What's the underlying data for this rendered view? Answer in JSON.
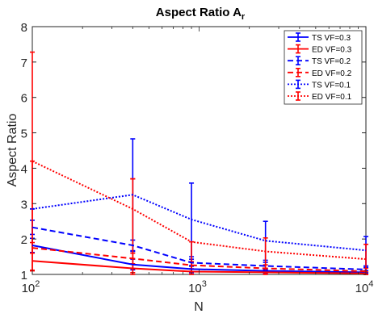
{
  "chart_data": {
    "type": "line",
    "title_main": "Aspect Ratio A",
    "title_sub": "r",
    "xlabel": "N",
    "ylabel": "Aspect Ratio",
    "x_scale": "log",
    "xlim": [
      100,
      10000
    ],
    "ylim": [
      1,
      8
    ],
    "x_ticks": [
      {
        "value": 100,
        "base": "10",
        "exp": "2"
      },
      {
        "value": 1000,
        "base": "10",
        "exp": "3"
      },
      {
        "value": 10000,
        "base": "10",
        "exp": "4"
      }
    ],
    "y_ticks": [
      {
        "value": 1,
        "label": "1"
      },
      {
        "value": 2,
        "label": "2"
      },
      {
        "value": 3,
        "label": "3"
      },
      {
        "value": 4,
        "label": "4"
      },
      {
        "value": 5,
        "label": "5"
      },
      {
        "value": 6,
        "label": "6"
      },
      {
        "value": 7,
        "label": "7"
      },
      {
        "value": 8,
        "label": "8"
      }
    ],
    "grid": false,
    "legend_position": "top-right",
    "x": [
      100,
      400,
      900,
      2500,
      10000
    ],
    "series": [
      {
        "name": "TS VF=0.3",
        "color": "#0000ff",
        "dash": "solid",
        "values": [
          1.82,
          1.28,
          1.15,
          1.1,
          1.06
        ],
        "err_low": [
          1.62,
          1.13,
          1.05,
          1.03,
          1.01
        ],
        "err_high": [
          2.02,
          1.43,
          1.25,
          1.17,
          1.11
        ]
      },
      {
        "name": "ED VF=0.3",
        "color": "#ff0000",
        "dash": "solid",
        "values": [
          1.38,
          1.17,
          1.08,
          1.06,
          1.03
        ],
        "err_low": [
          1.12,
          1.05,
          1.01,
          1.01,
          1.0
        ],
        "err_high": [
          7.28,
          3.7,
          1.15,
          1.12,
          1.07
        ]
      },
      {
        "name": "TS VF=0.2",
        "color": "#0000ff",
        "dash": "dashed",
        "values": [
          2.33,
          1.82,
          1.33,
          1.24,
          1.14
        ],
        "err_low": [
          2.13,
          1.67,
          1.23,
          1.14,
          1.04
        ],
        "err_high": [
          2.53,
          1.97,
          1.43,
          1.34,
          1.24
        ]
      },
      {
        "name": "ED VF=0.2",
        "color": "#ff0000",
        "dash": "dashed",
        "values": [
          1.75,
          1.45,
          1.26,
          1.17,
          1.09
        ],
        "err_low": [
          1.6,
          1.3,
          1.16,
          1.07,
          1.0
        ],
        "err_high": [
          1.9,
          1.6,
          1.36,
          1.27,
          1.18
        ]
      },
      {
        "name": "TS VF=0.1",
        "color": "#0000ff",
        "dash": "dotted",
        "values": [
          2.85,
          3.25,
          2.55,
          1.95,
          1.68
        ],
        "err_low": [
          2.85,
          1.65,
          1.5,
          1.4,
          1.2
        ],
        "err_high": [
          2.85,
          4.83,
          3.58,
          2.5,
          2.07
        ]
      },
      {
        "name": "ED VF=0.1",
        "color": "#ff0000",
        "dash": "dotted",
        "values": [
          4.2,
          2.85,
          1.92,
          1.65,
          1.43
        ],
        "err_low": [
          1.1,
          1.0,
          1.0,
          1.0,
          1.0
        ],
        "err_high": [
          4.2,
          3.7,
          1.92,
          2.03,
          1.85
        ]
      }
    ]
  }
}
